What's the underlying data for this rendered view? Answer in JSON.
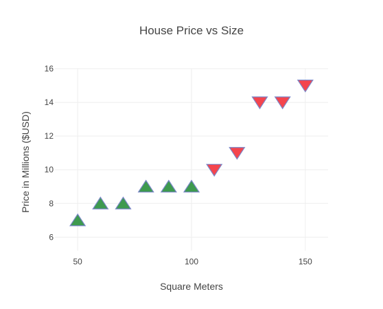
{
  "chart_data": {
    "type": "scatter",
    "title": "House Price vs Size",
    "xlabel": "Square Meters",
    "ylabel": "Price in Millions ($USD)",
    "xlim": [
      40,
      160
    ],
    "ylim": [
      5.2,
      16
    ],
    "xticks": [
      50,
      100,
      150
    ],
    "yticks": [
      6,
      8,
      10,
      12,
      14,
      16
    ],
    "grid": true,
    "series": [
      {
        "marker": "triangle-up",
        "fill_color": "#3e9a4f",
        "edge_color": "#7a86c8",
        "points": [
          {
            "x": 50,
            "y": 7
          },
          {
            "x": 60,
            "y": 8
          },
          {
            "x": 70,
            "y": 8
          },
          {
            "x": 80,
            "y": 9
          },
          {
            "x": 90,
            "y": 9
          },
          {
            "x": 100,
            "y": 9
          }
        ]
      },
      {
        "marker": "triangle-down",
        "fill_color": "#f4454d",
        "edge_color": "#7a86c8",
        "points": [
          {
            "x": 110,
            "y": 10
          },
          {
            "x": 120,
            "y": 11
          },
          {
            "x": 130,
            "y": 14
          },
          {
            "x": 140,
            "y": 14
          },
          {
            "x": 150,
            "y": 15
          }
        ]
      }
    ]
  }
}
